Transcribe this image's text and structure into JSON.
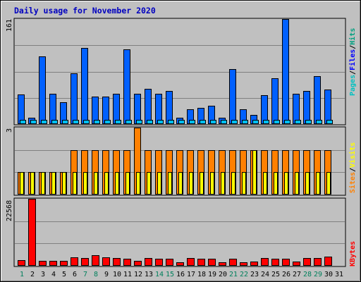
{
  "title": "Daily usage for November 2020",
  "colors": {
    "hits": "#0060ff",
    "files": "#00c0ff",
    "visits": "#ff8000",
    "sites": "#ffff00",
    "kbytes": "#ff0000",
    "weekend": "#00805c",
    "weekday": "#000000"
  },
  "chart_data": [
    {
      "type": "bar",
      "name": "hits-files-pages",
      "categories": [
        "1",
        "2",
        "3",
        "4",
        "5",
        "6",
        "7",
        "8",
        "9",
        "10",
        "11",
        "12",
        "13",
        "14",
        "15",
        "16",
        "17",
        "18",
        "19",
        "20",
        "21",
        "22",
        "23",
        "24",
        "25",
        "26",
        "27",
        "28",
        "29",
        "30",
        "31"
      ],
      "ymax_label": "161",
      "ylim": [
        0,
        161
      ],
      "legend": [
        {
          "key": "pages",
          "label": "Pages",
          "color": "#00c0c0"
        },
        {
          "key": "files",
          "label": "Files",
          "color": "#0000ff"
        },
        {
          "key": "hits",
          "label": "Hits",
          "color": "#00a080"
        }
      ],
      "series": [
        {
          "key": "hits",
          "values": [
            45,
            10,
            104,
            46,
            34,
            78,
            117,
            42,
            42,
            46,
            114,
            46,
            54,
            47,
            51,
            10,
            23,
            25,
            28,
            10,
            84,
            23,
            14,
            44,
            70,
            161,
            47,
            51,
            73,
            53,
            0
          ]
        },
        {
          "key": "files",
          "values": [
            6,
            6,
            6,
            6,
            6,
            6,
            6,
            6,
            6,
            6,
            6,
            6,
            6,
            6,
            6,
            6,
            6,
            6,
            6,
            6,
            6,
            6,
            6,
            6,
            6,
            6,
            6,
            6,
            6,
            6,
            0
          ]
        }
      ]
    },
    {
      "type": "bar",
      "name": "visits-sites",
      "categories": [
        "1",
        "2",
        "3",
        "4",
        "5",
        "6",
        "7",
        "8",
        "9",
        "10",
        "11",
        "12",
        "13",
        "14",
        "15",
        "16",
        "17",
        "18",
        "19",
        "20",
        "21",
        "22",
        "23",
        "24",
        "25",
        "26",
        "27",
        "28",
        "29",
        "30",
        "31"
      ],
      "ymax_label": "3",
      "ylim": [
        0,
        3
      ],
      "legend": [
        {
          "key": "sites",
          "label": "Sites",
          "color": "#ff8000"
        },
        {
          "key": "visits",
          "label": "Visits",
          "color": "#ffff00"
        }
      ],
      "series": [
        {
          "key": "visits",
          "values": [
            1,
            1,
            1,
            1,
            1,
            2,
            2,
            2,
            2,
            2,
            2,
            3,
            2,
            2,
            2,
            2,
            2,
            2,
            2,
            2,
            2,
            2,
            2,
            2,
            2,
            2,
            2,
            2,
            2,
            2,
            0
          ]
        },
        {
          "key": "sites",
          "values": [
            1,
            1,
            1,
            1,
            1,
            1,
            1,
            1,
            1,
            1,
            1,
            1,
            1,
            1,
            1,
            1,
            1,
            1,
            1,
            1,
            1,
            1,
            2,
            1,
            1,
            1,
            1,
            1,
            1,
            1,
            0
          ]
        }
      ]
    },
    {
      "type": "bar",
      "name": "kbytes",
      "categories": [
        "1",
        "2",
        "3",
        "4",
        "5",
        "6",
        "7",
        "8",
        "9",
        "10",
        "11",
        "12",
        "13",
        "14",
        "15",
        "16",
        "17",
        "18",
        "19",
        "20",
        "21",
        "22",
        "23",
        "24",
        "25",
        "26",
        "27",
        "28",
        "29",
        "30",
        "31"
      ],
      "ymax_label": "22568",
      "ylim": [
        0,
        22568
      ],
      "legend": [
        {
          "key": "kbytes",
          "label": "KBytes",
          "color": "#ff0000"
        }
      ],
      "series": [
        {
          "key": "kbytes",
          "values": [
            1800,
            22568,
            1600,
            1700,
            1600,
            2900,
            2700,
            3600,
            2800,
            2500,
            2400,
            1700,
            2500,
            2300,
            2300,
            1300,
            2500,
            2400,
            2400,
            1300,
            2400,
            1300,
            1500,
            2500,
            2300,
            2400,
            1500,
            2600,
            2500,
            3200,
            0
          ]
        }
      ]
    }
  ],
  "days": [
    {
      "label": "1",
      "weekend": true
    },
    {
      "label": "2",
      "weekend": false
    },
    {
      "label": "3",
      "weekend": false
    },
    {
      "label": "4",
      "weekend": false
    },
    {
      "label": "5",
      "weekend": false
    },
    {
      "label": "6",
      "weekend": false
    },
    {
      "label": "7",
      "weekend": true
    },
    {
      "label": "8",
      "weekend": true
    },
    {
      "label": "9",
      "weekend": false
    },
    {
      "label": "10",
      "weekend": false
    },
    {
      "label": "11",
      "weekend": false
    },
    {
      "label": "12",
      "weekend": false
    },
    {
      "label": "13",
      "weekend": false
    },
    {
      "label": "14",
      "weekend": true
    },
    {
      "label": "15",
      "weekend": true
    },
    {
      "label": "16",
      "weekend": false
    },
    {
      "label": "17",
      "weekend": false
    },
    {
      "label": "18",
      "weekend": false
    },
    {
      "label": "19",
      "weekend": false
    },
    {
      "label": "20",
      "weekend": false
    },
    {
      "label": "21",
      "weekend": true
    },
    {
      "label": "22",
      "weekend": true
    },
    {
      "label": "23",
      "weekend": false
    },
    {
      "label": "24",
      "weekend": false
    },
    {
      "label": "25",
      "weekend": false
    },
    {
      "label": "26",
      "weekend": false
    },
    {
      "label": "27",
      "weekend": false
    },
    {
      "label": "28",
      "weekend": true
    },
    {
      "label": "29",
      "weekend": true
    },
    {
      "label": "30",
      "weekend": false
    },
    {
      "label": "31",
      "weekend": false
    }
  ]
}
